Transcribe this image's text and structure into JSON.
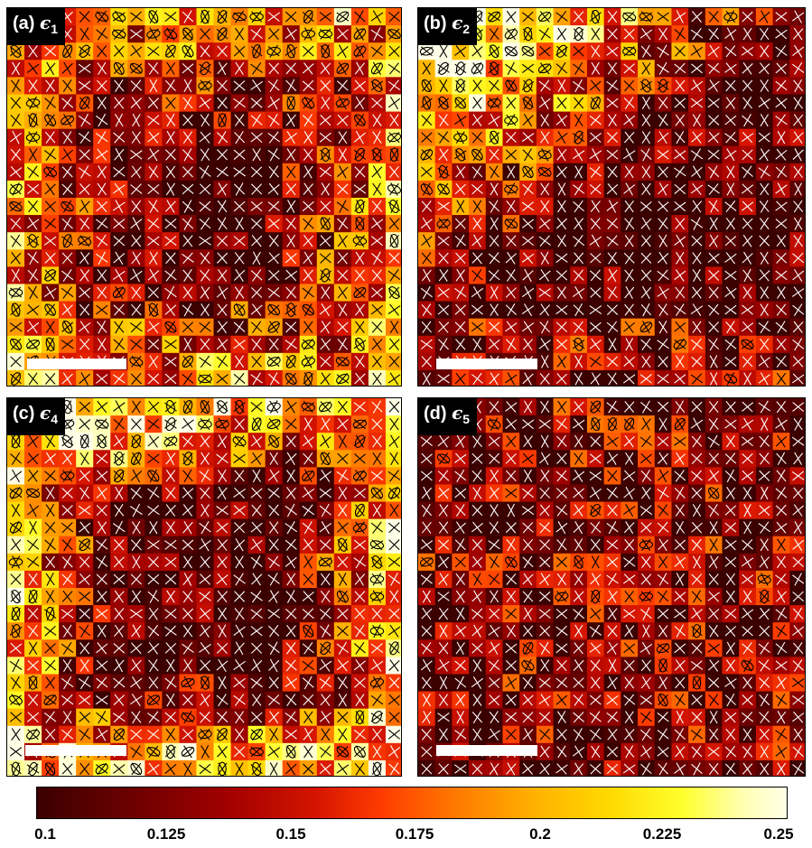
{
  "panels": [
    {
      "id": "a",
      "letter": "(a)",
      "symbol": "ϵ",
      "subscript": "1",
      "seed": 11,
      "pattern": "patchy"
    },
    {
      "id": "b",
      "letter": "(b)",
      "symbol": "ϵ",
      "subscript": "2",
      "seed": 23,
      "pattern": "corner-bright"
    },
    {
      "id": "c",
      "letter": "(c)",
      "symbol": "ϵ",
      "subscript": "4",
      "seed": 37,
      "pattern": "edge-bright"
    },
    {
      "id": "d",
      "letter": "(d)",
      "symbol": "ϵ",
      "subscript": "5",
      "seed": 51,
      "pattern": "dark"
    }
  ],
  "colorbar": {
    "min": 0.1,
    "max": 0.25,
    "tick_labels": [
      "0.1",
      "0.125",
      "0.15",
      "0.175",
      "0.2",
      "0.225",
      "0.25"
    ],
    "tick_values": [
      0.1,
      0.125,
      0.15,
      0.175,
      0.2,
      0.225,
      0.25
    ],
    "colormap": "hot"
  },
  "grid": {
    "rows": 22,
    "cols": 23
  }
}
